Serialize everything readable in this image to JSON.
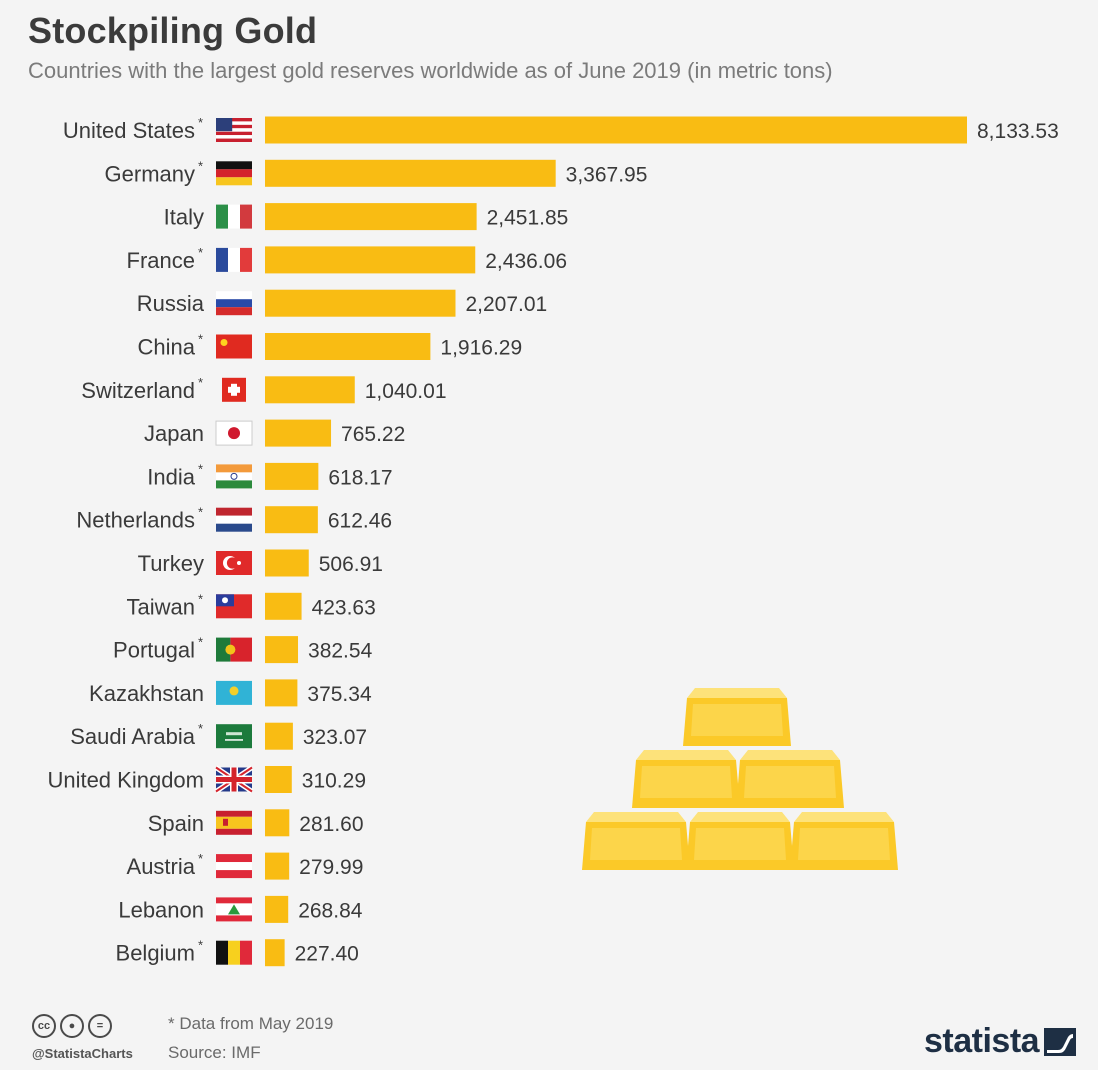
{
  "header": {
    "title": "Stockpiling Gold",
    "subtitle": "Countries with the largest gold reserves worldwide as of June 2019 (in metric tons)"
  },
  "chart_data": {
    "type": "bar",
    "orientation": "horizontal",
    "title": "Stockpiling Gold",
    "subtitle": "Countries with the largest gold reserves worldwide as of June 2019 (in metric tons)",
    "xlabel": "",
    "ylabel": "",
    "grid": false,
    "categories": [
      "United States",
      "Germany",
      "Italy",
      "France",
      "Russia",
      "China",
      "Switzerland",
      "Japan",
      "India",
      "Netherlands",
      "Turkey",
      "Taiwan",
      "Portugal",
      "Kazakhstan",
      "Saudi Arabia",
      "United Kingdom",
      "Spain",
      "Austria",
      "Lebanon",
      "Belgium"
    ],
    "asterisk": [
      true,
      true,
      false,
      true,
      false,
      true,
      true,
      false,
      true,
      true,
      false,
      true,
      true,
      false,
      true,
      false,
      false,
      true,
      false,
      true
    ],
    "values": [
      8133.53,
      3367.95,
      2451.85,
      2436.06,
      2207.01,
      1916.29,
      1040.01,
      765.22,
      618.17,
      612.46,
      506.91,
      423.63,
      382.54,
      375.34,
      323.07,
      310.29,
      281.6,
      279.99,
      268.84,
      227.4
    ],
    "value_labels": [
      "8,133.53",
      "3,367.95",
      "2,451.85",
      "2,436.06",
      "2,207.01",
      "1,916.29",
      "1,040.01",
      "765.22",
      "618.17",
      "612.46",
      "506.91",
      "423.63",
      "382.54",
      "375.34",
      "323.07",
      "310.29",
      "281.60",
      "279.99",
      "268.84",
      "227.40"
    ],
    "flags": [
      "us-flag-icon",
      "germany-flag-icon",
      "italy-flag-icon",
      "france-flag-icon",
      "russia-flag-icon",
      "china-flag-icon",
      "switzerland-flag-icon",
      "japan-flag-icon",
      "india-flag-icon",
      "netherlands-flag-icon",
      "turkey-flag-icon",
      "taiwan-flag-icon",
      "portugal-flag-icon",
      "kazakhstan-flag-icon",
      "saudi-arabia-flag-icon",
      "uk-flag-icon",
      "spain-flag-icon",
      "austria-flag-icon",
      "lebanon-flag-icon",
      "belgium-flag-icon"
    ],
    "bar_color": "#f9bc13"
  },
  "illustration": {
    "icon": "gold-bars-icon"
  },
  "footer": {
    "license_icons": [
      "cc-icon",
      "by-icon",
      "nd-icon"
    ],
    "handle": "@StatistaCharts",
    "footnote": "* Data from May 2019",
    "source": "Source: IMF",
    "brand": "statista"
  },
  "colors": {
    "gold": "#f9bc13",
    "gold_light": "#fcd54a",
    "brand": "#1e2f44",
    "text": "#3a3a3a"
  }
}
